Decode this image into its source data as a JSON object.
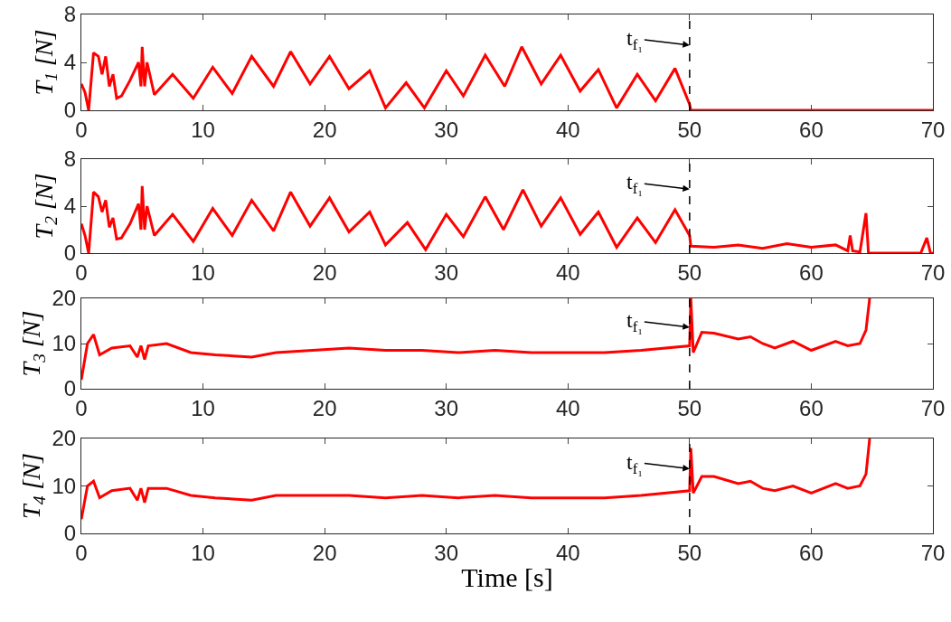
{
  "chart_data": [
    {
      "type": "line",
      "ylabel": "T$_{1}$ [N]",
      "xlim": [
        0,
        70
      ],
      "xticks": [
        0,
        10,
        20,
        30,
        40,
        50,
        60,
        70
      ],
      "ylim": [
        0,
        8
      ],
      "yticks": [
        0,
        4,
        8
      ],
      "grid": false,
      "line_style": "solid",
      "x": [
        0,
        0.3,
        0.6,
        1,
        1.4,
        1.7,
        2,
        2.3,
        2.6,
        2.9,
        3.3,
        4,
        4.7,
        4.9,
        5,
        5.2,
        5.4,
        6,
        7.5,
        9.2,
        10.8,
        12.4,
        14,
        15.8,
        17.2,
        18.8,
        20.4,
        22,
        23.7,
        25,
        26.7,
        28.2,
        30,
        31.4,
        33.2,
        34.8,
        36.2,
        37.8,
        39.4,
        41,
        42.5,
        44,
        45.7,
        47.2,
        48.8,
        50,
        50.1,
        70
      ],
      "series": [
        {
          "color": "#ff0000",
          "values": [
            2.2,
            1.5,
            0,
            4.8,
            4.5,
            3.0,
            4.5,
            2.0,
            3.0,
            1.0,
            1.2,
            2.5,
            4.0,
            2.0,
            5.3,
            2.0,
            4.0,
            1.3,
            3.0,
            1.0,
            3.6,
            1.4,
            4.5,
            2.0,
            4.9,
            2.2,
            4.5,
            1.8,
            3.3,
            0.2,
            2.3,
            0.2,
            3.3,
            1.2,
            4.6,
            2.0,
            5.3,
            2.2,
            4.6,
            1.6,
            3.4,
            0.2,
            3.0,
            0.8,
            3.5,
            0.5,
            0,
            0
          ]
        }
      ],
      "ref_lines": [
        {
          "axis": "x",
          "value": 50,
          "color": "#000000",
          "line_style": "dashed",
          "label": "t$_{f₁}$"
        }
      ]
    },
    {
      "type": "line",
      "ylabel": "T$_{2}$ [N]",
      "xlim": [
        0,
        70
      ],
      "xticks": [
        0,
        10,
        20,
        30,
        40,
        50,
        60,
        70
      ],
      "ylim": [
        0,
        8
      ],
      "yticks": [
        0,
        4,
        8
      ],
      "grid": false,
      "line_style": "solid",
      "x": [
        0,
        0.3,
        0.6,
        1,
        1.4,
        1.7,
        2,
        2.3,
        2.6,
        2.9,
        3.3,
        4,
        4.7,
        4.9,
        5,
        5.2,
        5.4,
        6,
        7.5,
        9.2,
        10.8,
        12.4,
        14,
        15.8,
        17.2,
        18.8,
        20.4,
        22,
        23.7,
        25,
        26.8,
        28.3,
        30,
        31.4,
        33.2,
        34.7,
        36.3,
        37.8,
        39.4,
        41,
        42.5,
        44,
        45.7,
        47.2,
        48.8,
        50,
        50.1,
        52,
        54,
        56,
        58,
        60,
        62,
        63,
        63.2,
        63.4,
        64,
        64.5,
        64.7,
        65,
        69,
        69.5,
        69.8,
        70
      ],
      "series": [
        {
          "color": "#ff0000",
          "values": [
            2.5,
            1.5,
            0,
            5.2,
            4.8,
            3.5,
            4.5,
            2.2,
            3.0,
            1.2,
            1.3,
            2.5,
            4.2,
            2.0,
            5.7,
            2.0,
            4.0,
            1.5,
            3.3,
            1.0,
            3.8,
            1.5,
            4.5,
            1.9,
            5.2,
            2.3,
            4.7,
            1.8,
            3.5,
            0.7,
            2.6,
            0.3,
            3.3,
            1.4,
            4.8,
            2.0,
            5.4,
            2.3,
            4.7,
            1.6,
            3.5,
            0.5,
            3.0,
            0.9,
            3.7,
            1.5,
            0.6,
            0.5,
            0.7,
            0.4,
            0.8,
            0.5,
            0.7,
            0.2,
            1.5,
            0.2,
            0.1,
            3.4,
            0,
            0,
            0,
            1.3,
            0,
            0
          ]
        }
      ],
      "ref_lines": [
        {
          "axis": "x",
          "value": 50,
          "color": "#000000",
          "line_style": "dashed",
          "label": "t$_{f₁}$"
        }
      ]
    },
    {
      "type": "line",
      "ylabel": "T$_{3}$ [N]",
      "xlim": [
        0,
        70
      ],
      "xticks": [
        0,
        10,
        20,
        30,
        40,
        50,
        60,
        70
      ],
      "ylim": [
        0,
        20
      ],
      "yticks": [
        0,
        10,
        20
      ],
      "grid": false,
      "line_style": "solid",
      "x": [
        0,
        0.5,
        1,
        1.5,
        2.5,
        4,
        4.6,
        4.9,
        5.2,
        5.5,
        7,
        9,
        11,
        14,
        16,
        19,
        22,
        25,
        28,
        31,
        34,
        37,
        40,
        43,
        46,
        50,
        50.1,
        50.3,
        51,
        52,
        54,
        55,
        56,
        57,
        58.5,
        60,
        62,
        63,
        64,
        64.5,
        64.8
      ],
      "series": [
        {
          "color": "#ff0000",
          "values": [
            2,
            10,
            12,
            7.5,
            9,
            9.5,
            7,
            9.5,
            6.5,
            9.5,
            10,
            8,
            7.5,
            7,
            8,
            8.5,
            9,
            8.5,
            8.5,
            8,
            8.5,
            8,
            8,
            8,
            8.5,
            9.5,
            20,
            8,
            12.5,
            12.3,
            11,
            11.5,
            10,
            9,
            10.5,
            8.5,
            10.5,
            9.5,
            10,
            13,
            20
          ]
        }
      ],
      "ref_lines": [
        {
          "axis": "x",
          "value": 50,
          "color": "#000000",
          "line_style": "dashed",
          "label": "t$_{f₁}$"
        }
      ]
    },
    {
      "type": "line",
      "ylabel": "T$_{4}$ [N]",
      "xlabel": "Time [s]",
      "xlim": [
        0,
        70
      ],
      "xticks": [
        0,
        10,
        20,
        30,
        40,
        50,
        60,
        70
      ],
      "ylim": [
        0,
        20
      ],
      "yticks": [
        0,
        10,
        20
      ],
      "grid": false,
      "line_style": "solid",
      "x": [
        0,
        0.5,
        1,
        1.5,
        2.5,
        4,
        4.6,
        4.9,
        5.2,
        5.5,
        7,
        9,
        11,
        14,
        16,
        19,
        22,
        25,
        28,
        31,
        34,
        37,
        40,
        43,
        46,
        50,
        50.1,
        50.3,
        51,
        52,
        54,
        55,
        56,
        57,
        58.5,
        60,
        62,
        63,
        64,
        64.5,
        64.8
      ],
      "series": [
        {
          "color": "#ff0000",
          "values": [
            3,
            10,
            11,
            7.5,
            9,
            9.5,
            7,
            9.5,
            6.5,
            9.5,
            9.5,
            8,
            7.5,
            7,
            8,
            8,
            8,
            7.5,
            8,
            7.5,
            8,
            7.5,
            7.5,
            7.5,
            8,
            9,
            18,
            8.5,
            12,
            12,
            10.5,
            11,
            9.5,
            9,
            10,
            8.5,
            10.5,
            9.5,
            10,
            12.5,
            20
          ]
        }
      ],
      "ref_lines": [
        {
          "axis": "x",
          "value": 50,
          "color": "#000000",
          "line_style": "dashed",
          "label": "t$_{f₁}$"
        }
      ]
    }
  ]
}
